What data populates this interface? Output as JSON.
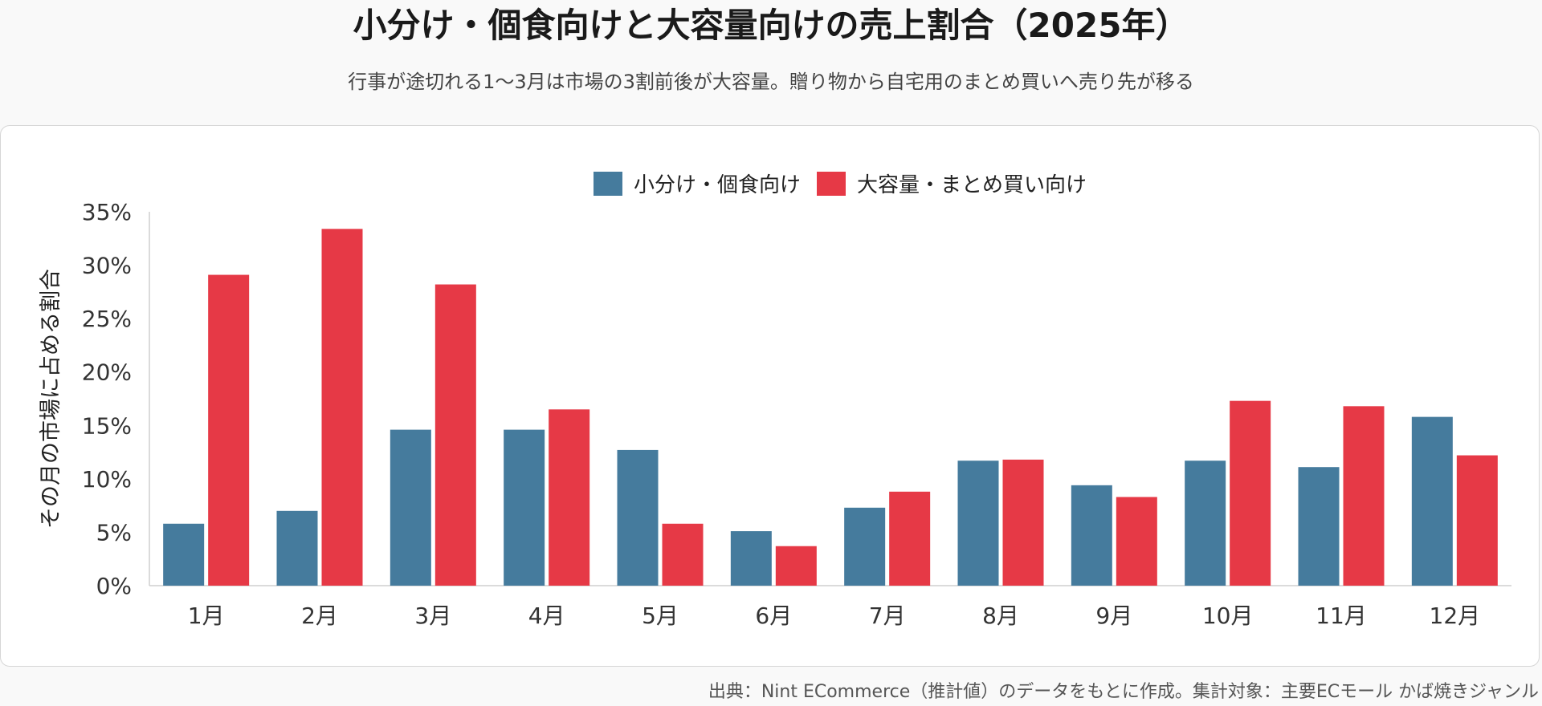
{
  "header": {
    "title": "小分け・個食向けと大容量向けの売上割合（2025年）",
    "subtitle": "行事が途切れる1〜3月は市場の3割前後が大容量。贈り物から自宅用のまとめ買いへ売り先が移る"
  },
  "footer": {
    "source": "出典：Nint ECommerce（推計値）のデータをもとに作成。集計対象：主要ECモール かば焼きジャンル"
  },
  "chart_data": {
    "type": "bar",
    "ylabel": "その月の市場に占める割合",
    "xlabel": "",
    "ylim": [
      0,
      35
    ],
    "yticks": [
      0,
      5,
      10,
      15,
      20,
      25,
      30,
      35
    ],
    "y_tick_format": "{v}%",
    "grid": false,
    "legend_position": "top-center",
    "categories": [
      "1月",
      "2月",
      "3月",
      "4月",
      "5月",
      "6月",
      "7月",
      "8月",
      "9月",
      "10月",
      "11月",
      "12月"
    ],
    "series": [
      {
        "name": "小分け・個食向け",
        "color": "#457b9d",
        "values": [
          5.8,
          7.0,
          14.6,
          14.6,
          12.7,
          5.1,
          7.3,
          11.7,
          9.4,
          11.7,
          11.1,
          15.8
        ]
      },
      {
        "name": "大容量・まとめ買い向け",
        "color": "#e63946",
        "values": [
          29.1,
          33.4,
          28.2,
          16.5,
          5.8,
          3.7,
          8.8,
          11.8,
          8.3,
          17.3,
          16.8,
          12.2
        ]
      }
    ]
  }
}
